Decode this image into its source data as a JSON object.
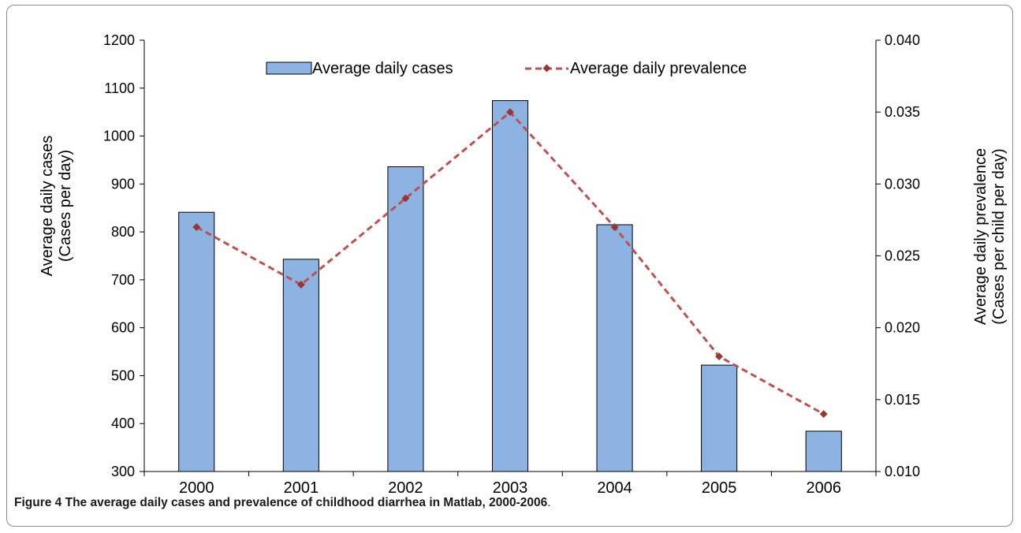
{
  "caption": {
    "label": "Figure 4",
    "text": " The average daily cases and prevalence of childhood diarrhea in Matlab, 2000-2006",
    "end": "."
  },
  "chart_data": {
    "type": "bar",
    "title": "",
    "categories": [
      "2000",
      "2001",
      "2002",
      "2003",
      "2004",
      "2005",
      "2006"
    ],
    "series": [
      {
        "name": "Average daily cases",
        "type": "bar",
        "axis": "left",
        "color": "#8db3e2",
        "values": [
          841,
          743,
          936,
          1074,
          815,
          522,
          384
        ]
      },
      {
        "name": "Average daily prevalence",
        "type": "line",
        "axis": "right",
        "color": "#c0504d",
        "marker_color": "#953735",
        "line_style": "dashed",
        "marker": "diamond",
        "values": [
          0.027,
          0.023,
          0.029,
          0.035,
          0.027,
          0.018,
          0.014
        ]
      }
    ],
    "y_left": {
      "label_line1": "Average daily cases",
      "label_line2": "(Cases per day)",
      "min": 300,
      "max": 1200,
      "ticks": [
        "300",
        "400",
        "500",
        "600",
        "700",
        "800",
        "900",
        "1000",
        "1100",
        "1200"
      ]
    },
    "y_right": {
      "label_line1": "Average daily prevalence",
      "label_line2": "(Cases per child per day)",
      "min": 0.01,
      "max": 0.04,
      "ticks": [
        "0.010",
        "0.015",
        "0.020",
        "0.025",
        "0.030",
        "0.035",
        "0.040"
      ]
    },
    "legend_position": "top-center",
    "grid": false
  }
}
